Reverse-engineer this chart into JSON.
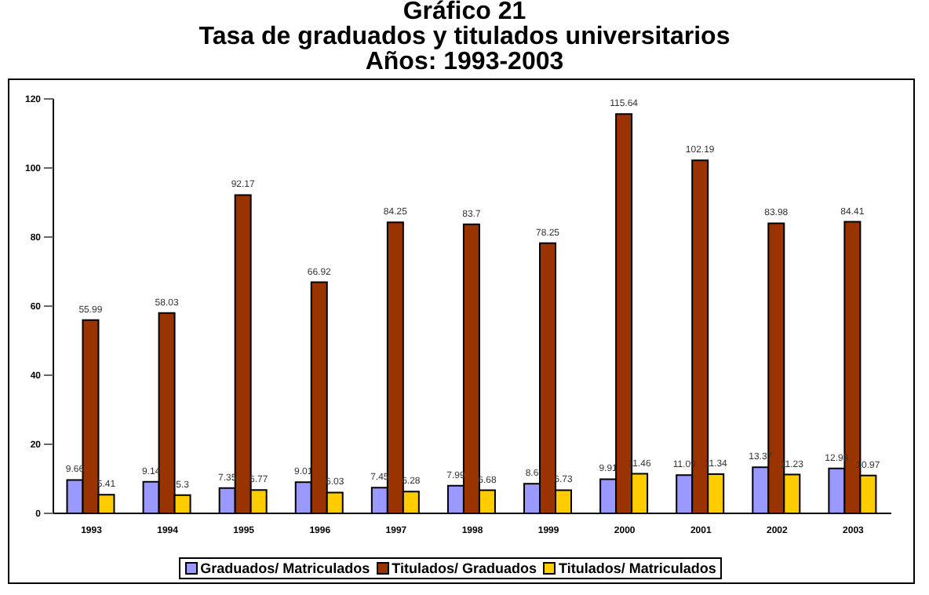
{
  "chart_data": {
    "type": "bar",
    "title": "Gráfico 21",
    "subtitle": "Tasa de graduados y titulados universitarios\nAños: 1993-2003",
    "categories": [
      "1993",
      "1994",
      "1995",
      "1996",
      "1997",
      "1998",
      "1999",
      "2000",
      "2001",
      "2002",
      "2003"
    ],
    "series": [
      {
        "name": "Graduados/ Matriculados",
        "color": "#9999ff",
        "values": [
          9.66,
          9.14,
          7.35,
          9.01,
          7.45,
          7.99,
          8.6,
          9.91,
          11.09,
          13.37,
          12.99
        ]
      },
      {
        "name": "Titulados/ Graduados",
        "color": "#993300",
        "values": [
          55.99,
          58.03,
          92.17,
          66.92,
          84.25,
          83.7,
          78.25,
          115.64,
          102.19,
          83.98,
          84.41
        ]
      },
      {
        "name": "Titulados/ Matriculados",
        "color": "#ffcc00",
        "values": [
          5.41,
          5.3,
          6.77,
          6.03,
          6.28,
          6.68,
          6.73,
          11.46,
          11.34,
          11.23,
          10.97
        ]
      }
    ],
    "ylim": [
      0,
      120
    ],
    "yticks": [
      0,
      20,
      40,
      60,
      80,
      100,
      120
    ],
    "grid": false,
    "legend": "bottom",
    "data_labels": true
  }
}
